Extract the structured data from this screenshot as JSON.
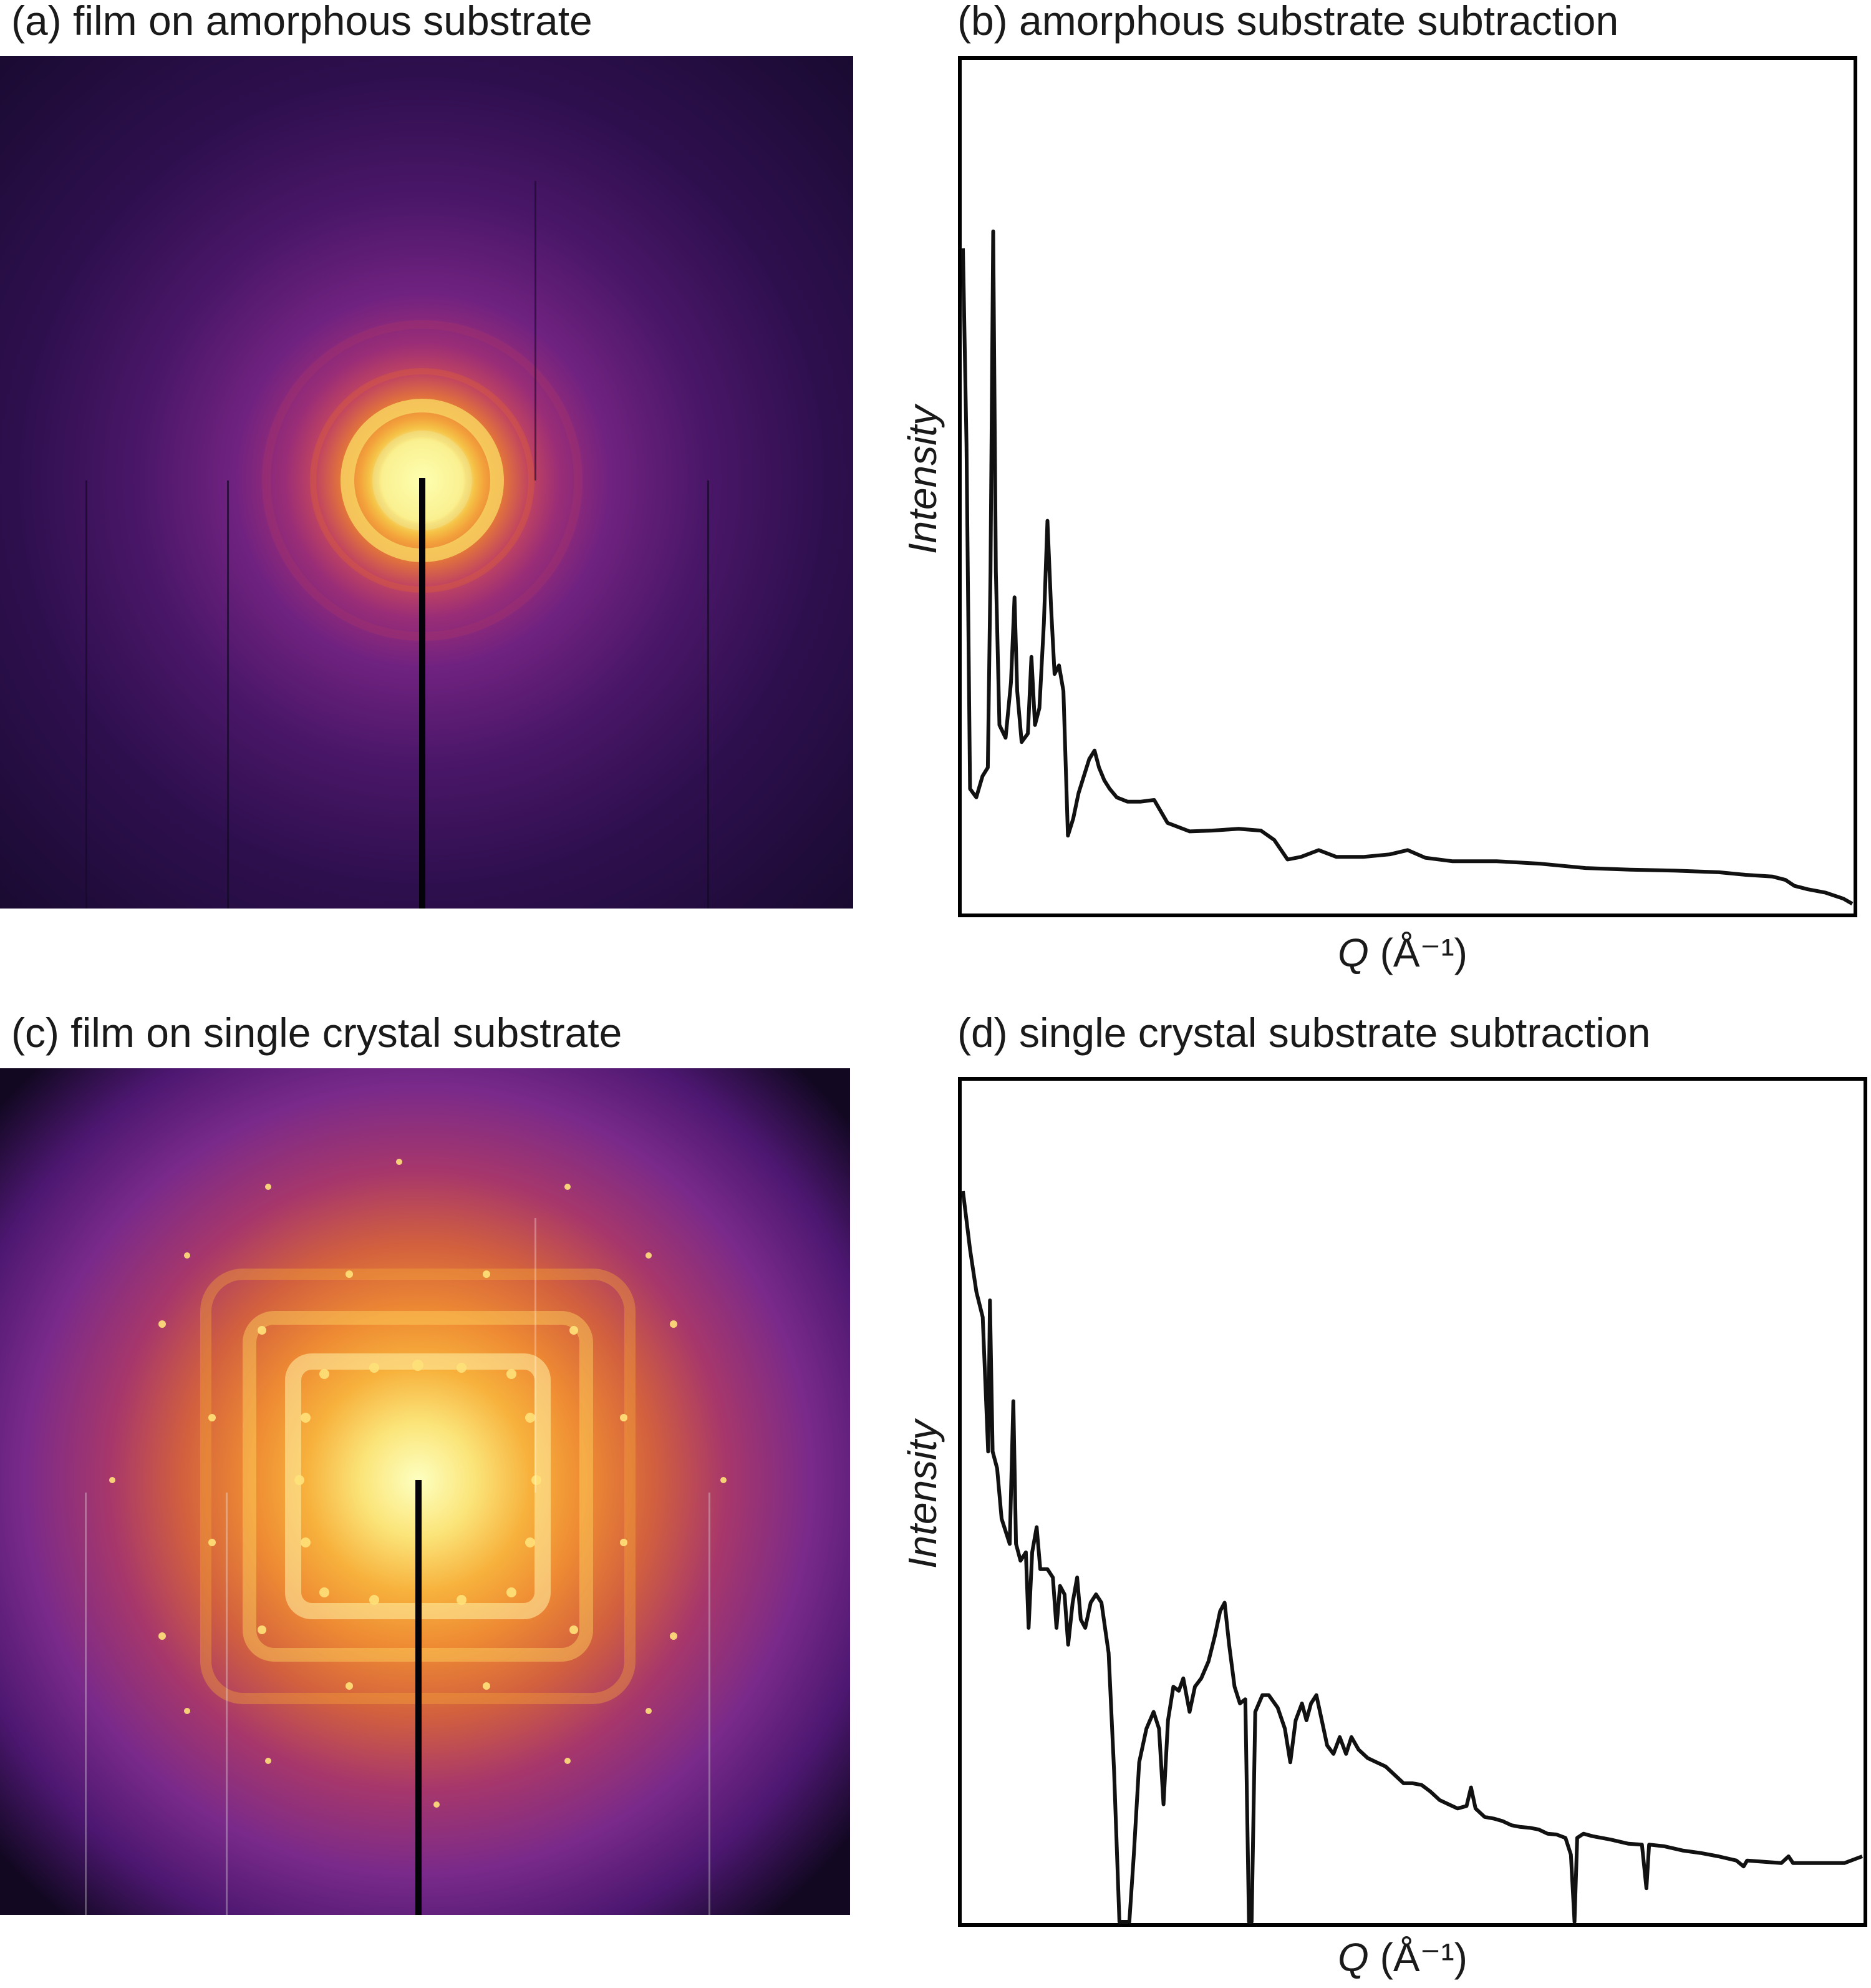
{
  "panels": {
    "a": {
      "title": "(a) film on amorphous substrate"
    },
    "b": {
      "title": "(b) amorphous substrate subtraction"
    },
    "c": {
      "title": "(c) film on single crystal substrate"
    },
    "d": {
      "title": "(d) single crystal substrate subtraction"
    }
  },
  "colors": {
    "line": "#111111",
    "frame": "#000000",
    "beamstop": "#05030a"
  },
  "chart_data": [
    {
      "panel": "b",
      "type": "line",
      "title": "(b) amorphous substrate subtraction",
      "xlabel_symbol": "Q",
      "xlabel_unit": "(Å⁻¹)",
      "ylabel": "Intensity",
      "xlim": [
        0,
        100
      ],
      "ylim": [
        0,
        100
      ],
      "ticks": false,
      "grid": false,
      "series": [
        {
          "values": [
            [
              0.0,
              78
            ],
            [
              0.4,
              55
            ],
            [
              0.8,
              14.5
            ],
            [
              1.5,
              13.5
            ],
            [
              2.2,
              16
            ],
            [
              2.8,
              17
            ],
            [
              3.1,
              40
            ],
            [
              3.4,
              80
            ],
            [
              3.7,
              40
            ],
            [
              4.1,
              22
            ],
            [
              4.8,
              20.5
            ],
            [
              5.4,
              27
            ],
            [
              5.8,
              37
            ],
            [
              6.1,
              26
            ],
            [
              6.6,
              20
            ],
            [
              7.3,
              21
            ],
            [
              7.7,
              30
            ],
            [
              8.1,
              22
            ],
            [
              8.6,
              24
            ],
            [
              9.1,
              34
            ],
            [
              9.5,
              46
            ],
            [
              9.9,
              36
            ],
            [
              10.3,
              28
            ],
            [
              10.8,
              29
            ],
            [
              11.3,
              26
            ],
            [
              11.8,
              9
            ],
            [
              12.4,
              11
            ],
            [
              13.0,
              14
            ],
            [
              13.6,
              16
            ],
            [
              14.2,
              18
            ],
            [
              14.8,
              19
            ],
            [
              15.3,
              17
            ],
            [
              15.9,
              15.5
            ],
            [
              16.5,
              14.5
            ],
            [
              17.3,
              13.5
            ],
            [
              18.5,
              13
            ],
            [
              20.0,
              13
            ],
            [
              21.5,
              13.2
            ],
            [
              23.0,
              10.5
            ],
            [
              25.5,
              9.5
            ],
            [
              28.0,
              9.6
            ],
            [
              31.0,
              9.8
            ],
            [
              33.5,
              9.6
            ],
            [
              35.0,
              8.5
            ],
            [
              36.5,
              6.2
            ],
            [
              38.0,
              6.5
            ],
            [
              40.0,
              7.3
            ],
            [
              42.0,
              6.5
            ],
            [
              45.0,
              6.5
            ],
            [
              48.0,
              6.8
            ],
            [
              50.0,
              7.3
            ],
            [
              52.0,
              6.4
            ],
            [
              55.0,
              6.0
            ],
            [
              60.0,
              6.0
            ],
            [
              65.0,
              5.7
            ],
            [
              70.0,
              5.2
            ],
            [
              75.0,
              5.0
            ],
            [
              80.0,
              4.9
            ],
            [
              85.0,
              4.7
            ],
            [
              88.0,
              4.4
            ],
            [
              91.0,
              4.2
            ],
            [
              92.5,
              3.8
            ],
            [
              93.5,
              3.1
            ],
            [
              95.0,
              2.7
            ],
            [
              97.0,
              2.3
            ],
            [
              99.0,
              1.6
            ],
            [
              100.0,
              1.0
            ]
          ]
        }
      ]
    },
    {
      "panel": "d",
      "type": "line",
      "title": "(d) single crystal substrate subtraction",
      "xlabel_symbol": "Q",
      "xlabel_unit": "(Å⁻¹)",
      "ylabel": "Intensity",
      "xlim": [
        0,
        100
      ],
      "ylim": [
        0,
        100
      ],
      "ticks": false,
      "grid": false,
      "series": [
        {
          "values": [
            [
              0.0,
              87
            ],
            [
              0.8,
              80
            ],
            [
              1.5,
              75
            ],
            [
              2.2,
              72
            ],
            [
              2.8,
              56
            ],
            [
              3.0,
              74
            ],
            [
              3.3,
              56
            ],
            [
              3.8,
              54
            ],
            [
              4.3,
              48
            ],
            [
              5.2,
              45
            ],
            [
              5.6,
              62
            ],
            [
              5.9,
              45
            ],
            [
              6.4,
              43
            ],
            [
              7.0,
              44
            ],
            [
              7.3,
              35
            ],
            [
              7.7,
              44
            ],
            [
              8.2,
              47
            ],
            [
              8.6,
              42
            ],
            [
              9.4,
              42
            ],
            [
              10.0,
              41
            ],
            [
              10.4,
              35
            ],
            [
              10.8,
              40
            ],
            [
              11.3,
              39
            ],
            [
              11.7,
              33
            ],
            [
              12.2,
              38
            ],
            [
              12.7,
              41
            ],
            [
              13.1,
              36
            ],
            [
              13.6,
              35
            ],
            [
              14.2,
              38
            ],
            [
              14.8,
              39
            ],
            [
              15.4,
              38
            ],
            [
              16.2,
              32
            ],
            [
              16.8,
              18
            ],
            [
              17.4,
              0
            ],
            [
              17.8,
              0
            ],
            [
              18.5,
              0
            ],
            [
              19.0,
              8
            ],
            [
              19.6,
              19
            ],
            [
              20.4,
              23
            ],
            [
              21.2,
              25
            ],
            [
              21.8,
              23
            ],
            [
              22.3,
              14
            ],
            [
              22.8,
              24
            ],
            [
              23.4,
              28
            ],
            [
              24.0,
              27.5
            ],
            [
              24.5,
              29
            ],
            [
              25.2,
              25
            ],
            [
              25.8,
              28
            ],
            [
              26.5,
              29
            ],
            [
              27.3,
              31
            ],
            [
              28.0,
              34
            ],
            [
              28.6,
              37
            ],
            [
              29.1,
              38
            ],
            [
              29.6,
              33
            ],
            [
              30.2,
              28
            ],
            [
              30.8,
              26
            ],
            [
              31.4,
              26.5
            ],
            [
              31.8,
              0
            ],
            [
              32.1,
              0
            ],
            [
              32.5,
              25
            ],
            [
              33.3,
              27
            ],
            [
              34.0,
              27
            ],
            [
              35.0,
              25.5
            ],
            [
              35.8,
              23
            ],
            [
              36.4,
              19
            ],
            [
              37.0,
              24
            ],
            [
              37.7,
              26
            ],
            [
              38.2,
              24
            ],
            [
              38.7,
              26
            ],
            [
              39.3,
              27
            ],
            [
              39.9,
              24
            ],
            [
              40.5,
              21
            ],
            [
              41.2,
              20
            ],
            [
              41.9,
              22
            ],
            [
              42.6,
              20
            ],
            [
              43.2,
              22
            ],
            [
              44.0,
              20.5
            ],
            [
              45.0,
              19.5
            ],
            [
              46.0,
              19
            ],
            [
              47.0,
              18.5
            ],
            [
              48.0,
              17.5
            ],
            [
              49.0,
              16.5
            ],
            [
              50.0,
              16.5
            ],
            [
              51.0,
              16.3
            ],
            [
              52.0,
              15.5
            ],
            [
              53.0,
              14.5
            ],
            [
              54.0,
              14
            ],
            [
              55.0,
              13.5
            ],
            [
              56.0,
              13.8
            ],
            [
              56.5,
              16
            ],
            [
              57.0,
              13.5
            ],
            [
              58.0,
              12.5
            ],
            [
              59.0,
              12.3
            ],
            [
              60.0,
              12
            ],
            [
              61.0,
              11.5
            ],
            [
              62.0,
              11.3
            ],
            [
              63.0,
              11.2
            ],
            [
              64.0,
              11
            ],
            [
              65.0,
              10.5
            ],
            [
              66.0,
              10.4
            ],
            [
              67.0,
              10
            ],
            [
              67.6,
              8
            ],
            [
              68.0,
              0
            ],
            [
              68.3,
              10
            ],
            [
              69.0,
              10.5
            ],
            [
              70.0,
              10.2
            ],
            [
              72.0,
              9.8
            ],
            [
              74.0,
              9.3
            ],
            [
              75.5,
              9.2
            ],
            [
              76.0,
              4
            ],
            [
              76.3,
              9.2
            ],
            [
              78.0,
              9
            ],
            [
              80.0,
              8.5
            ],
            [
              82.0,
              8.2
            ],
            [
              84.0,
              7.8
            ],
            [
              86.0,
              7.3
            ],
            [
              86.8,
              6.6
            ],
            [
              87.2,
              7.3
            ],
            [
              88.5,
              7.2
            ],
            [
              91.0,
              7.0
            ],
            [
              91.8,
              7.8
            ],
            [
              92.3,
              7.0
            ],
            [
              94.0,
              7.0
            ],
            [
              96.0,
              7.0
            ],
            [
              98.0,
              7.0
            ],
            [
              100.0,
              7.8
            ]
          ]
        }
      ]
    }
  ]
}
